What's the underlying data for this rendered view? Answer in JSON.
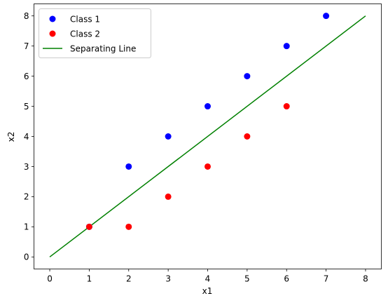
{
  "chart_data": {
    "type": "scatter",
    "title": "",
    "xlabel": "x1",
    "ylabel": "x2",
    "xlim": [
      -0.4,
      8.4
    ],
    "ylim": [
      -0.4,
      8.4
    ],
    "xticks": [
      0,
      1,
      2,
      3,
      4,
      5,
      6,
      7,
      8
    ],
    "yticks": [
      0,
      1,
      2,
      3,
      4,
      5,
      6,
      7,
      8
    ],
    "grid": false,
    "legend_position": "top-left",
    "series": [
      {
        "name": "Class 1",
        "kind": "scatter",
        "color": "#0000ff",
        "points": [
          [
            1,
            1
          ],
          [
            2,
            3
          ],
          [
            3,
            4
          ],
          [
            4,
            5
          ],
          [
            5,
            6
          ],
          [
            6,
            7
          ],
          [
            7,
            8
          ]
        ]
      },
      {
        "name": "Class 2",
        "kind": "scatter",
        "color": "#ff0000",
        "points": [
          [
            1,
            1
          ],
          [
            2,
            1
          ],
          [
            3,
            2
          ],
          [
            4,
            3
          ],
          [
            5,
            4
          ],
          [
            6,
            5
          ]
        ]
      },
      {
        "name": "Separating Line",
        "kind": "line",
        "color": "#008000",
        "points": [
          [
            0,
            0
          ],
          [
            8,
            8
          ]
        ]
      }
    ]
  }
}
